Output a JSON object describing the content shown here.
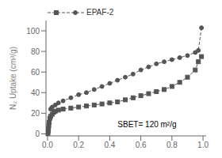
{
  "chart_data": {
    "type": "line",
    "ylabel": "N₂ Uptake (cm³/g)",
    "xlim": [
      -0.01,
      1.02
    ],
    "ylim": [
      -2,
      110
    ],
    "xticks": [
      {
        "value": 0,
        "label": "0.0"
      },
      0.2,
      0.4,
      0.6,
      {
        "value": 0.8,
        "label": "0.8"
      },
      {
        "value": 1,
        "label": "1.0"
      }
    ],
    "yticks": [
      0,
      20,
      40,
      60,
      80,
      100
    ],
    "grid": false,
    "legend": "upper left",
    "annotations": [
      {
        "text": "SBET= 120 m²/g",
        "x": 0.42,
        "y": 9
      }
    ],
    "series": [
      {
        "color": "#555555",
        "marker": "square",
        "line_style": "dashed",
        "x": [
          0.001,
          0.002,
          0.004,
          0.006,
          0.008,
          0.01,
          0.015,
          0.02,
          0.03,
          0.04,
          0.05,
          0.07,
          0.1,
          0.15,
          0.2,
          0.25,
          0.3,
          0.35,
          0.4,
          0.45,
          0.5,
          0.55,
          0.6,
          0.65,
          0.7,
          0.75,
          0.8,
          0.85,
          0.9,
          0.95,
          0.97,
          0.99
        ],
        "values": [
          0.2,
          0.8,
          2.5,
          5,
          8,
          11,
          15,
          17,
          19,
          21,
          22,
          23,
          24,
          25,
          26,
          27,
          28,
          29,
          30,
          31,
          33,
          35,
          37,
          39,
          41,
          43,
          46,
          50,
          55,
          62,
          70,
          75
        ]
      },
      {
        "name": "EPAF-2",
        "color": "#555555",
        "marker": "circle",
        "line_style": "dashed",
        "x": [
          0.99,
          0.97,
          0.95,
          0.9,
          0.85,
          0.8,
          0.75,
          0.7,
          0.65,
          0.6,
          0.55,
          0.5,
          0.45,
          0.4,
          0.35,
          0.3,
          0.25,
          0.2,
          0.15,
          0.1,
          0.07,
          0.05,
          0.03,
          0.02
        ],
        "values": [
          103,
          81,
          79,
          76,
          74,
          72,
          70,
          68,
          65,
          62,
          58,
          55,
          52,
          49,
          46,
          43,
          40,
          38,
          35,
          32,
          30,
          28,
          26,
          24
        ]
      }
    ]
  }
}
